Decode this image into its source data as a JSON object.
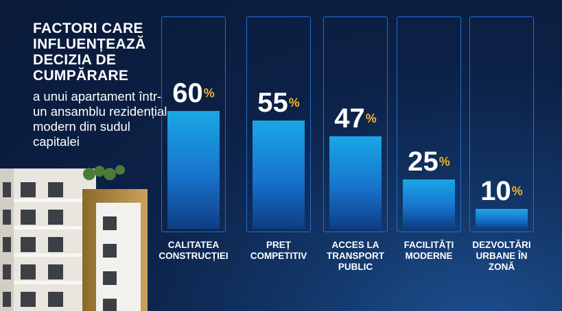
{
  "headline": "FACTORI CARE INFLUENȚEAZĂ DECIZIA DE CUMPĂRARE",
  "subline": "a unui apartament într-un ansamblu rezidențial modern din sudul capitalei",
  "colors": {
    "background": "#0c2147",
    "bar_top": "#1aa7e6",
    "bar_bottom": "#0e3d86",
    "panel_border": "#1f6fd4",
    "percent_sign": "#f0b429"
  },
  "chart_data": {
    "type": "bar",
    "title": "FACTORI CARE INFLUENȚEAZĂ DECIZIA DE CUMPĂRARE",
    "subtitle": "a unui apartament într-un ansamblu rezidențial modern din sudul capitalei",
    "categories": [
      "CALITATEA CONSTRUCȚIEI",
      "PREȚ COMPETITIV",
      "ACCES LA TRANSPORT PUBLIC",
      "FACILITĂȚI MODERNE",
      "DEZVOLTĂRI URBANE ÎN ZONĂ"
    ],
    "values": [
      60,
      55,
      47,
      25,
      10
    ],
    "value_labels": [
      "60",
      "55",
      "47",
      "25",
      "10"
    ],
    "unit": "%",
    "ylim": [
      0,
      100
    ],
    "xlabel": "",
    "ylabel": "",
    "grid": false
  }
}
